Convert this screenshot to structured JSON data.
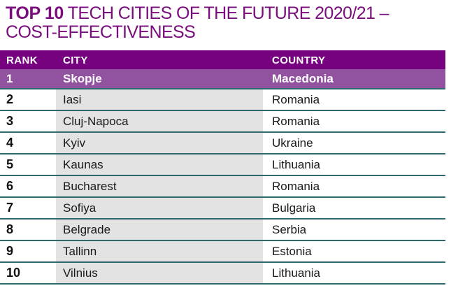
{
  "title": {
    "line1_bold": "TOP 10",
    "line1_rest": " TECH CITIES OF THE FUTURE 2020/21 –",
    "line2": "COST-EFFECTIVENESS"
  },
  "table": {
    "columns": [
      "RANK",
      "CITY",
      "COUNTRY"
    ],
    "rows": [
      {
        "rank": "1",
        "city": "Skopje",
        "country": "Macedonia"
      },
      {
        "rank": "2",
        "city": "Iasi",
        "country": "Romania"
      },
      {
        "rank": "3",
        "city": "Cluj-Napoca",
        "country": "Romania"
      },
      {
        "rank": "4",
        "city": "Kyiv",
        "country": "Ukraine"
      },
      {
        "rank": "5",
        "city": "Kaunas",
        "country": "Lithuania"
      },
      {
        "rank": "6",
        "city": "Bucharest",
        "country": "Romania"
      },
      {
        "rank": "7",
        "city": "Sofiya",
        "country": "Bulgaria"
      },
      {
        "rank": "8",
        "city": "Belgrade",
        "country": "Serbia"
      },
      {
        "rank": "9",
        "city": "Tallinn",
        "country": "Estonia"
      },
      {
        "rank": "10",
        "city": "Vilnius",
        "country": "Lithuania"
      }
    ]
  },
  "colors": {
    "title_purple": "#7a0d7e",
    "header_purple": "#760280",
    "first_row_mauve": "#9153a0",
    "city_column_gray": "#e3e3e3",
    "separator_teal": "#2e696d"
  },
  "chart_data": {
    "type": "table",
    "title": "TOP 10 TECH CITIES OF THE FUTURE 2020/21 – COST-EFFECTIVENESS",
    "columns": [
      "RANK",
      "CITY",
      "COUNTRY"
    ],
    "rows": [
      [
        "1",
        "Skopje",
        "Macedonia"
      ],
      [
        "2",
        "Iasi",
        "Romania"
      ],
      [
        "3",
        "Cluj-Napoca",
        "Romania"
      ],
      [
        "4",
        "Kyiv",
        "Ukraine"
      ],
      [
        "5",
        "Kaunas",
        "Lithuania"
      ],
      [
        "6",
        "Bucharest",
        "Romania"
      ],
      [
        "7",
        "Sofiya",
        "Bulgaria"
      ],
      [
        "8",
        "Belgrade",
        "Serbia"
      ],
      [
        "9",
        "Tallinn",
        "Estonia"
      ],
      [
        "10",
        "Vilnius",
        "Lithuania"
      ]
    ]
  }
}
